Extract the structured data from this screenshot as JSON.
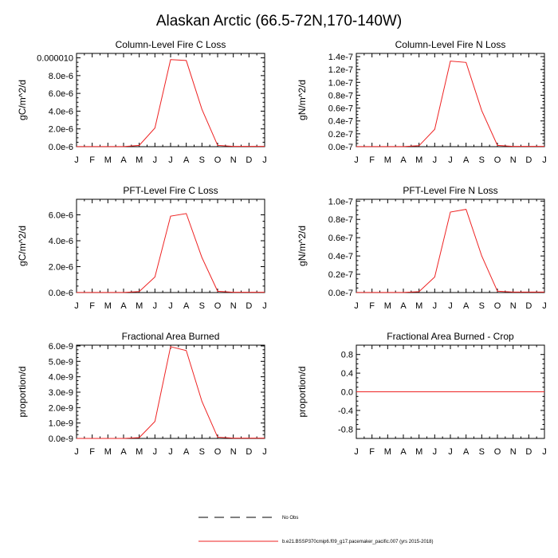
{
  "title": "Alaskan Arctic (66.5-72N,170-140W)",
  "colors": {
    "model_line": "#ee2222",
    "axis": "#000000",
    "obs_line": "#000000"
  },
  "legend": {
    "obs_label": "No Obs",
    "model_label": "b.e21.BSSP370cmip6.f09_g17.pacemaker_pacific.007 (yrs 2015-2018)"
  },
  "chart_data": [
    {
      "type": "line",
      "title": "Column-Level Fire C Loss",
      "ylabel": "gC/m^2/d",
      "categories": [
        "J",
        "F",
        "M",
        "A",
        "M",
        "J",
        "J",
        "A",
        "S",
        "O",
        "N",
        "D",
        "J"
      ],
      "ylim": [
        0,
        1.05e-05
      ],
      "yticks": [
        0,
        2e-06,
        4e-06,
        6e-06,
        8e-06,
        1e-05
      ],
      "ytick_labels": [
        "0.0e-6",
        "2.0e-6",
        "4.0e-6",
        "6.0e-6",
        "8.0e-6",
        "0.000010"
      ],
      "series": [
        {
          "name": "b.e21.BSSP370cmip6.f09_g17.pacemaker_pacific.007 (yrs 2015-2018)",
          "values": [
            1e-08,
            1e-08,
            1e-08,
            1e-08,
            1.5e-07,
            2.1e-06,
            9.8e-06,
            9.7e-06,
            4.2e-06,
            1.5e-07,
            3e-08,
            3e-08,
            3e-08
          ]
        }
      ]
    },
    {
      "type": "line",
      "title": "Column-Level Fire N Loss",
      "ylabel": "gN/m^2/d",
      "categories": [
        "J",
        "F",
        "M",
        "A",
        "M",
        "J",
        "J",
        "A",
        "S",
        "O",
        "N",
        "D",
        "J"
      ],
      "ylim": [
        0,
        1.45e-07
      ],
      "yticks": [
        0,
        2e-08,
        4e-08,
        6e-08,
        8e-08,
        1e-07,
        1.2e-07,
        1.4e-07
      ],
      "ytick_labels": [
        "0.0e-7",
        "0.2e-7",
        "0.4e-7",
        "0.6e-7",
        "0.8e-7",
        "1.0e-7",
        "1.2e-7",
        "1.4e-7"
      ],
      "series": [
        {
          "name": "b.e21.BSSP370cmip6.f09_g17.pacemaker_pacific.007 (yrs 2015-2018)",
          "values": [
            1e-10,
            1e-10,
            1e-10,
            1e-10,
            1.5e-09,
            2.7e-08,
            1.33e-07,
            1.31e-07,
            5.6e-08,
            2e-09,
            5e-10,
            5e-10,
            5e-10
          ]
        }
      ]
    },
    {
      "type": "line",
      "title": "PFT-Level Fire C Loss",
      "ylabel": "gC/m^2/d",
      "categories": [
        "J",
        "F",
        "M",
        "A",
        "M",
        "J",
        "J",
        "A",
        "S",
        "O",
        "N",
        "D",
        "J"
      ],
      "ylim": [
        0,
        7.2e-06
      ],
      "yticks": [
        0,
        2e-06,
        4e-06,
        6e-06
      ],
      "ytick_labels": [
        "0.0e-6",
        "2.0e-6",
        "4.0e-6",
        "6.0e-6"
      ],
      "series": [
        {
          "name": "b.e21.BSSP370cmip6.f09_g17.pacemaker_pacific.007 (yrs 2015-2018)",
          "values": [
            1e-08,
            1e-08,
            1e-08,
            1e-08,
            8e-08,
            1.2e-06,
            5.9e-06,
            6.1e-06,
            2.7e-06,
            1e-07,
            2e-08,
            2e-08,
            2e-08
          ]
        }
      ]
    },
    {
      "type": "line",
      "title": "PFT-Level Fire N Loss",
      "ylabel": "gN/m^2/d",
      "categories": [
        "J",
        "F",
        "M",
        "A",
        "M",
        "J",
        "J",
        "A",
        "S",
        "O",
        "N",
        "D",
        "J"
      ],
      "ylim": [
        0,
        1.02e-07
      ],
      "yticks": [
        0,
        2e-08,
        4e-08,
        6e-08,
        8e-08,
        1e-07
      ],
      "ytick_labels": [
        "0.0e-7",
        "0.2e-7",
        "0.4e-7",
        "0.6e-7",
        "0.8e-7",
        "1.0e-7"
      ],
      "series": [
        {
          "name": "b.e21.BSSP370cmip6.f09_g17.pacemaker_pacific.007 (yrs 2015-2018)",
          "values": [
            1e-10,
            1e-10,
            1e-10,
            1e-10,
            1e-09,
            1.7e-08,
            8.8e-08,
            9.1e-08,
            4e-08,
            1.5e-09,
            5e-10,
            5e-10,
            5e-10
          ]
        }
      ]
    },
    {
      "type": "line",
      "title": "Fractional Area Burned",
      "ylabel": "proportion/d",
      "categories": [
        "J",
        "F",
        "M",
        "A",
        "M",
        "J",
        "J",
        "A",
        "S",
        "O",
        "N",
        "D",
        "J"
      ],
      "ylim": [
        0,
        6.05e-09
      ],
      "yticks": [
        0,
        1e-09,
        2e-09,
        3e-09,
        4e-09,
        5e-09,
        6e-09
      ],
      "ytick_labels": [
        "0.0e-9",
        "1.0e-9",
        "2.0e-9",
        "3.0e-9",
        "4.0e-9",
        "5.0e-9",
        "6.0e-9"
      ],
      "series": [
        {
          "name": "b.e21.BSSP370cmip6.f09_g17.pacemaker_pacific.007 (yrs 2015-2018)",
          "values": [
            1e-12,
            1e-12,
            1e-12,
            1e-12,
            5e-11,
            1.1e-09,
            5.95e-09,
            5.7e-09,
            2.4e-09,
            8e-11,
            2e-11,
            2e-11,
            2e-11
          ]
        }
      ]
    },
    {
      "type": "line",
      "title": "Fractional Area Burned - Crop",
      "ylabel": "proportion/d",
      "categories": [
        "J",
        "F",
        "M",
        "A",
        "M",
        "J",
        "J",
        "A",
        "S",
        "O",
        "N",
        "D",
        "J"
      ],
      "ylim": [
        -1.0,
        1.0
      ],
      "yticks": [
        -0.8,
        -0.4,
        0.0,
        0.4,
        0.8
      ],
      "ytick_labels": [
        "-0.8",
        "-0.4",
        "0.0",
        "0.4",
        "0.8"
      ],
      "series": [
        {
          "name": "b.e21.BSSP370cmip6.f09_g17.pacemaker_pacific.007 (yrs 2015-2018)",
          "values": [
            0,
            0,
            0,
            0,
            0,
            0,
            0,
            0,
            0,
            0,
            0,
            0,
            0
          ]
        }
      ]
    }
  ]
}
